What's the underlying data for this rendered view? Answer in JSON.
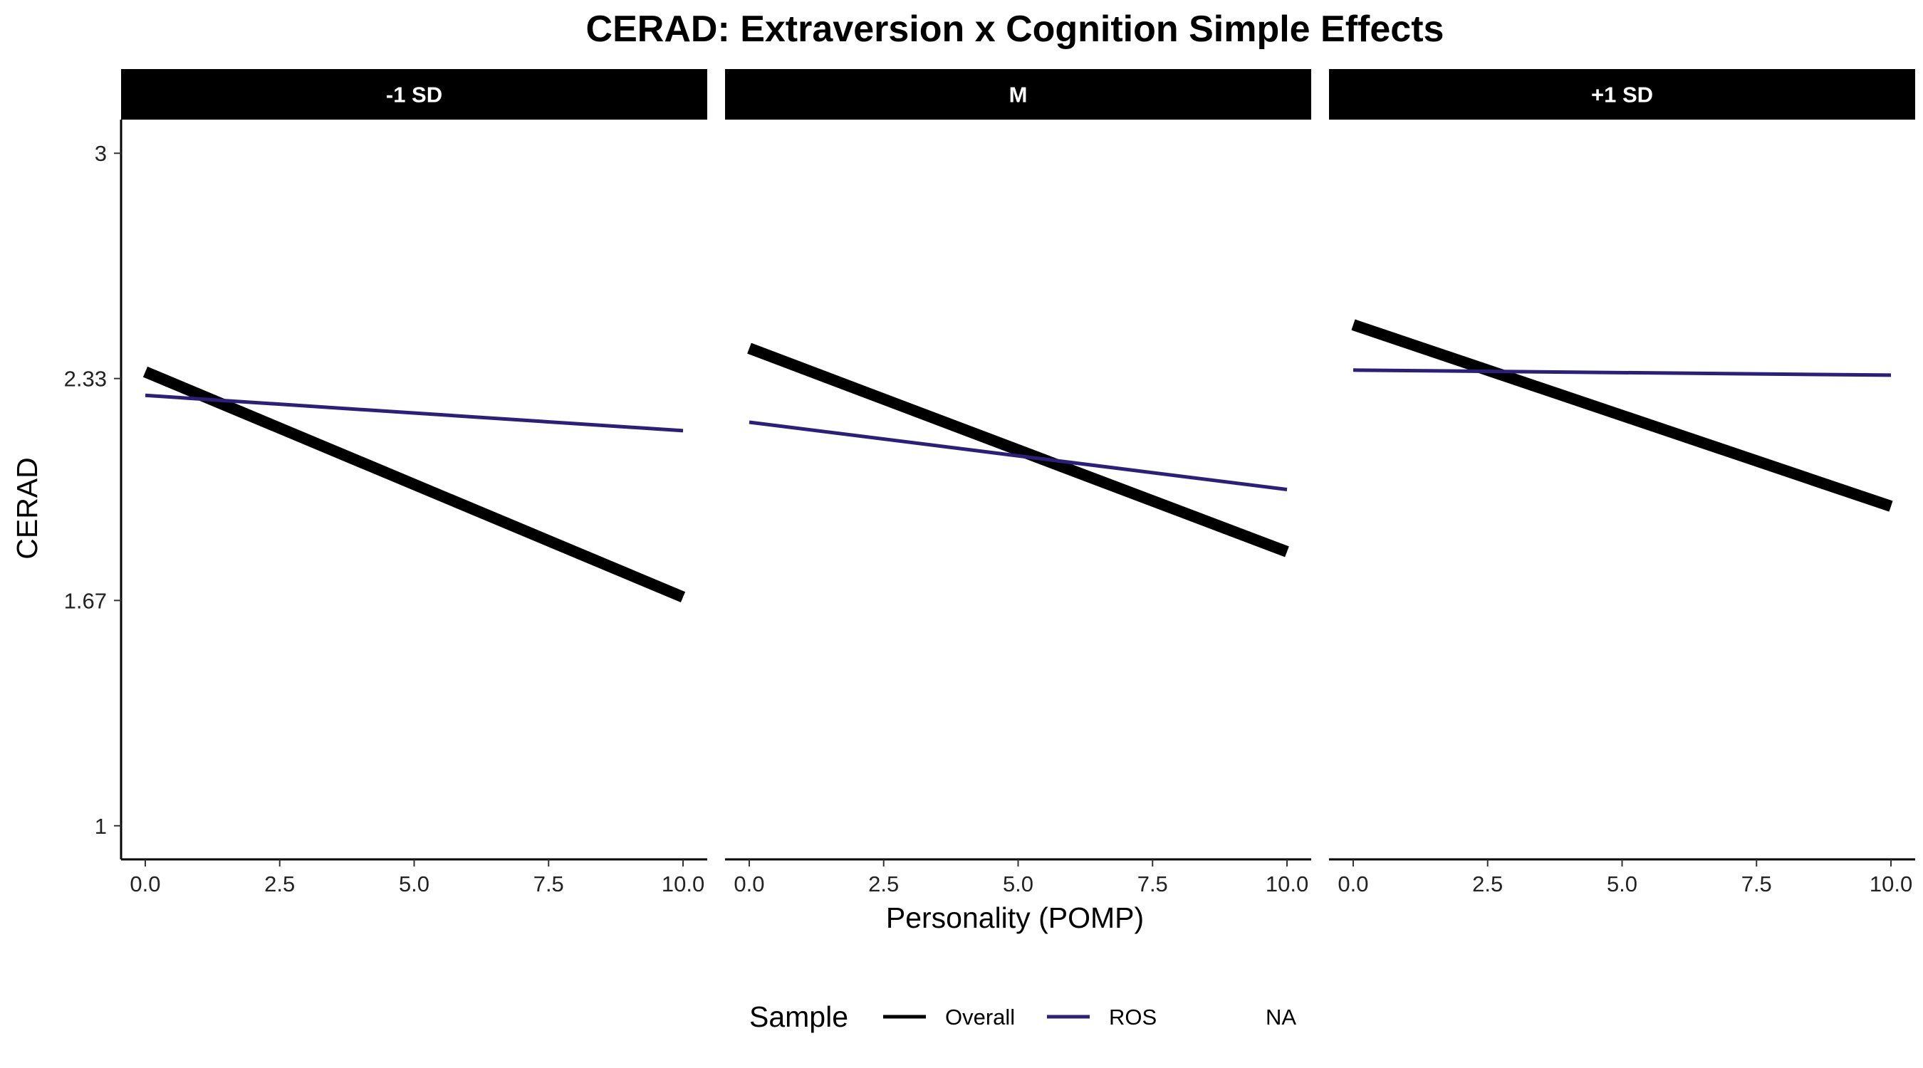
{
  "chart_data": {
    "type": "line",
    "title": "CERAD: Extraversion x Cognition Simple Effects",
    "xlabel": "Personality (POMP)",
    "ylabel": "CERAD",
    "xlim": [
      -0.45,
      10.45
    ],
    "ylim": [
      0.9,
      3.1
    ],
    "x_ticks": [
      0.0,
      2.5,
      5.0,
      7.5,
      10.0
    ],
    "x_tick_labels": [
      "0.0",
      "2.5",
      "5.0",
      "7.5",
      "10.0"
    ],
    "y_ticks": [
      1,
      1.67,
      2.33,
      3
    ],
    "y_tick_labels": [
      "1",
      "1.67",
      "2.33",
      "3"
    ],
    "grid": false,
    "legend": {
      "title": "Sample",
      "position": "bottom",
      "entries": [
        {
          "label": "Overall",
          "color": "#000000",
          "line": true
        },
        {
          "label": "ROS",
          "color": "#2c1f7a",
          "line": true
        },
        {
          "label": "NA",
          "color": "#ffffff",
          "line": false
        }
      ]
    },
    "panels": [
      {
        "label": "-1 SD",
        "series": [
          {
            "name": "Overall",
            "color": "#000000",
            "x": [
              0,
              10
            ],
            "y": [
              2.35,
              1.68
            ]
          },
          {
            "name": "ROS",
            "color": "#2c1f7a",
            "x": [
              0,
              10
            ],
            "y": [
              2.28,
              2.175
            ]
          }
        ]
      },
      {
        "label": "M",
        "series": [
          {
            "name": "Overall",
            "color": "#000000",
            "x": [
              0,
              10
            ],
            "y": [
              2.42,
              1.815
            ]
          },
          {
            "name": "ROS",
            "color": "#2c1f7a",
            "x": [
              0,
              10
            ],
            "y": [
              2.2,
              2.0
            ]
          }
        ]
      },
      {
        "label": "+1 SD",
        "series": [
          {
            "name": "Overall",
            "color": "#000000",
            "x": [
              0,
              10
            ],
            "y": [
              2.49,
              1.95
            ]
          },
          {
            "name": "ROS",
            "color": "#2c1f7a",
            "x": [
              0,
              10
            ],
            "y": [
              2.355,
              2.34
            ]
          }
        ]
      }
    ]
  }
}
